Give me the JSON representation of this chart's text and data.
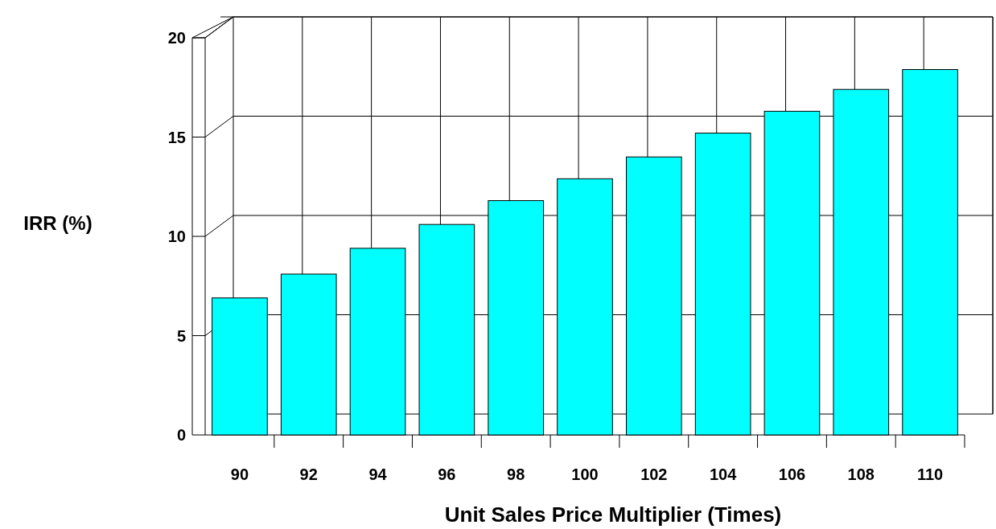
{
  "chart_data": {
    "type": "bar",
    "xlabel": "Unit Sales Price Multiplier (Times)",
    "ylabel": "IRR (%)",
    "categories": [
      "90",
      "92",
      "94",
      "96",
      "98",
      "100",
      "102",
      "104",
      "106",
      "108",
      "110"
    ],
    "series": [
      {
        "color": "#00ffff",
        "values": [
          6.9,
          8.1,
          9.4,
          10.6,
          11.8,
          12.9,
          14.0,
          15.2,
          16.3,
          17.4,
          18.4
        ]
      }
    ],
    "ylim": [
      0,
      20
    ],
    "yticks": [
      0,
      5,
      10,
      15,
      20
    ],
    "grid": true
  }
}
